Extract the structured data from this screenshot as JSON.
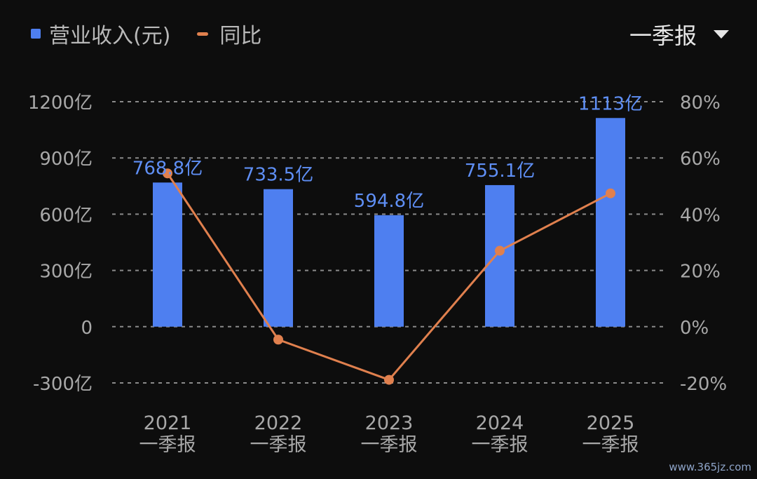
{
  "legend": {
    "bar_label": "营业收入(元)",
    "line_label": "同比"
  },
  "period_selector": {
    "value": "一季报",
    "icon": "caret-down-icon"
  },
  "watermark": "www.365jz.com",
  "colors": {
    "bar": "#4e7ff0",
    "line": "#e0804e",
    "bar_label": "#5f8ff5",
    "axis_text": "#a8a8a8",
    "grid": "#8a8a8a",
    "background": "#0d0d0d"
  },
  "chart_data": {
    "type": "bar",
    "categories": [
      "2021\n一季报",
      "2022\n一季报",
      "2023\n一季报",
      "2024\n一季报",
      "2025\n一季报"
    ],
    "series": [
      {
        "name": "营业收入(元)",
        "type": "bar",
        "axis": "left",
        "values": [
          768.8,
          733.5,
          594.8,
          755.1,
          1113
        ],
        "labels": [
          "768.8亿",
          "733.5亿",
          "594.8亿",
          "755.1亿",
          "1113亿"
        ]
      },
      {
        "name": "同比",
        "type": "line",
        "axis": "right",
        "values": [
          54.5,
          -4.6,
          -18.9,
          27.0,
          47.4
        ]
      }
    ],
    "left_axis": {
      "ticks": [
        -300,
        0,
        300,
        600,
        900,
        1200
      ],
      "tick_labels": [
        "-300亿",
        "0",
        "300亿",
        "600亿",
        "900亿",
        "1200亿"
      ],
      "ylim": [
        -300,
        1200
      ]
    },
    "right_axis": {
      "ticks": [
        -20,
        0,
        20,
        40,
        60,
        80
      ],
      "tick_labels": [
        "-20%",
        "0%",
        "20%",
        "40%",
        "60%",
        "80%"
      ],
      "ylim": [
        -20,
        80
      ]
    },
    "grid": true,
    "legend_position": "top-left"
  }
}
